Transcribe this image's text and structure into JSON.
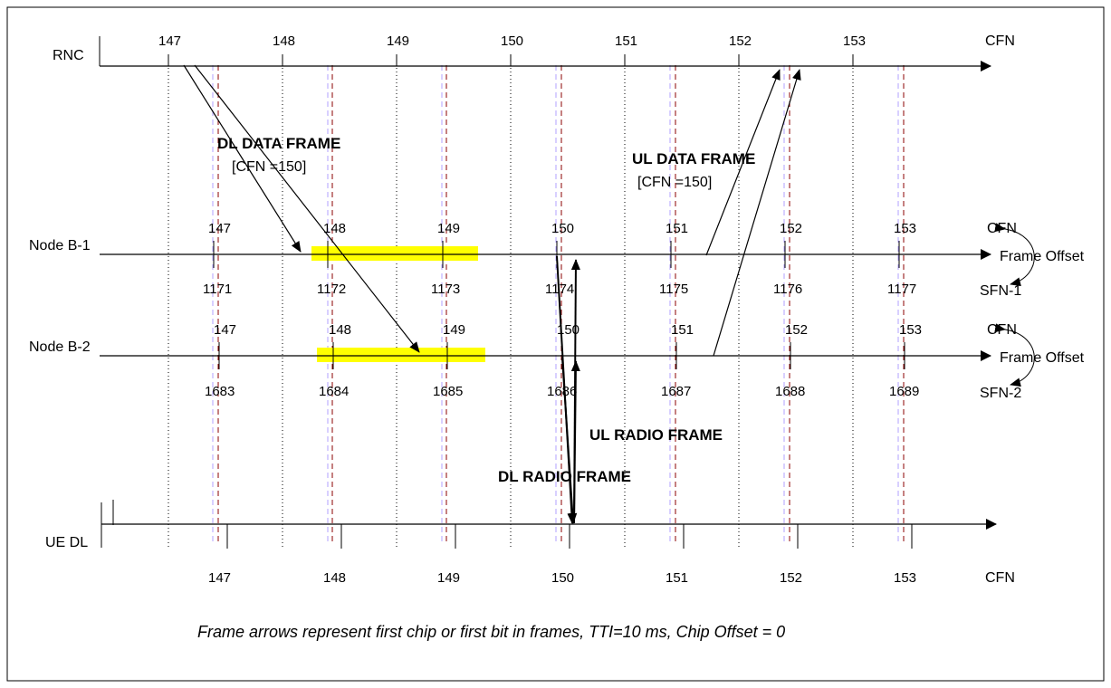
{
  "rows": {
    "rnc": "RNC",
    "nodeb1": "Node B-1",
    "nodeb2": "Node B-2",
    "uedl": "UE DL"
  },
  "right_labels": {
    "cfn_top": "CFN",
    "cfn_b1": "CFN",
    "frame_offset_b1": "Frame Offset",
    "sfn_b1": "SFN-1",
    "cfn_b2": "CFN",
    "frame_offset_b2": "Frame Offset",
    "sfn_b2": "SFN-2",
    "cfn_bottom": "CFN"
  },
  "rnc_cfn": [
    "147",
    "148",
    "149",
    "150",
    "151",
    "152",
    "153"
  ],
  "nodeb1_cfn": [
    "147",
    "148",
    "149",
    "150",
    "151",
    "152",
    "153"
  ],
  "nodeb1_sfn": [
    "1171",
    "1172",
    "1173",
    "1174",
    "1175",
    "1176",
    "1177"
  ],
  "nodeb2_cfn": [
    "147",
    "148",
    "149",
    "150",
    "151",
    "152",
    "153"
  ],
  "nodeb2_sfn": [
    "1683",
    "1684",
    "1685",
    "1686",
    "1687",
    "1688",
    "1689"
  ],
  "ue_cfn": [
    "147",
    "148",
    "149",
    "150",
    "151",
    "152",
    "153"
  ],
  "annotations": {
    "dl_data_frame": "DL DATA FRAME",
    "dl_data_frame_cfn": "[CFN =150]",
    "ul_data_frame": "UL DATA FRAME",
    "ul_data_frame_cfn": "[CFN =150]",
    "ul_radio_frame": "UL RADIO FRAME",
    "dl_radio_frame": "DL RADIO FRAME"
  },
  "footnote": "Frame arrows represent first chip or first bit in frames, TTI=10 ms, Chip Offset = 0",
  "colors": {
    "line": "#000000",
    "highlight": "#ffff00",
    "red_dash": "#8b0000",
    "violet_dash": "#b0a0ff"
  }
}
